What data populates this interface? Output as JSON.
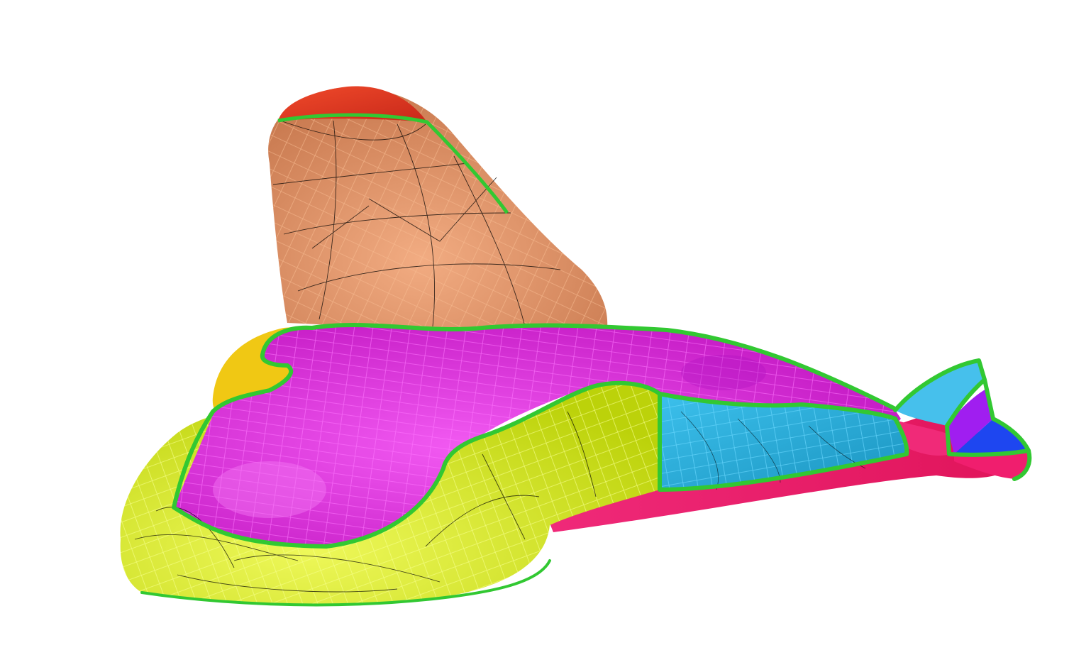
{
  "scene": {
    "background": "#ffffff",
    "colors": {
      "head_tip": "#e8321e",
      "head": "#d98b5e",
      "head_light": "#f0a57c",
      "head_mesh": "#f6b48a",
      "yellow_green": "#d2e614",
      "yellow_green_light": "#e8f53c",
      "yellow": "#f0c814",
      "magenta": "#d21ed2",
      "magenta_light": "#f046f0",
      "magenta_mesh": "#ff6eff",
      "cyan": "#1eaad2",
      "cyan_light": "#46c8f0",
      "cyan_mesh": "#5ad7ff",
      "pink_red": "#f01e6e",
      "violet": "#a01ef0",
      "blue": "#1e46f0",
      "seam_green": "#32c832",
      "contour_black": "#000000"
    }
  }
}
